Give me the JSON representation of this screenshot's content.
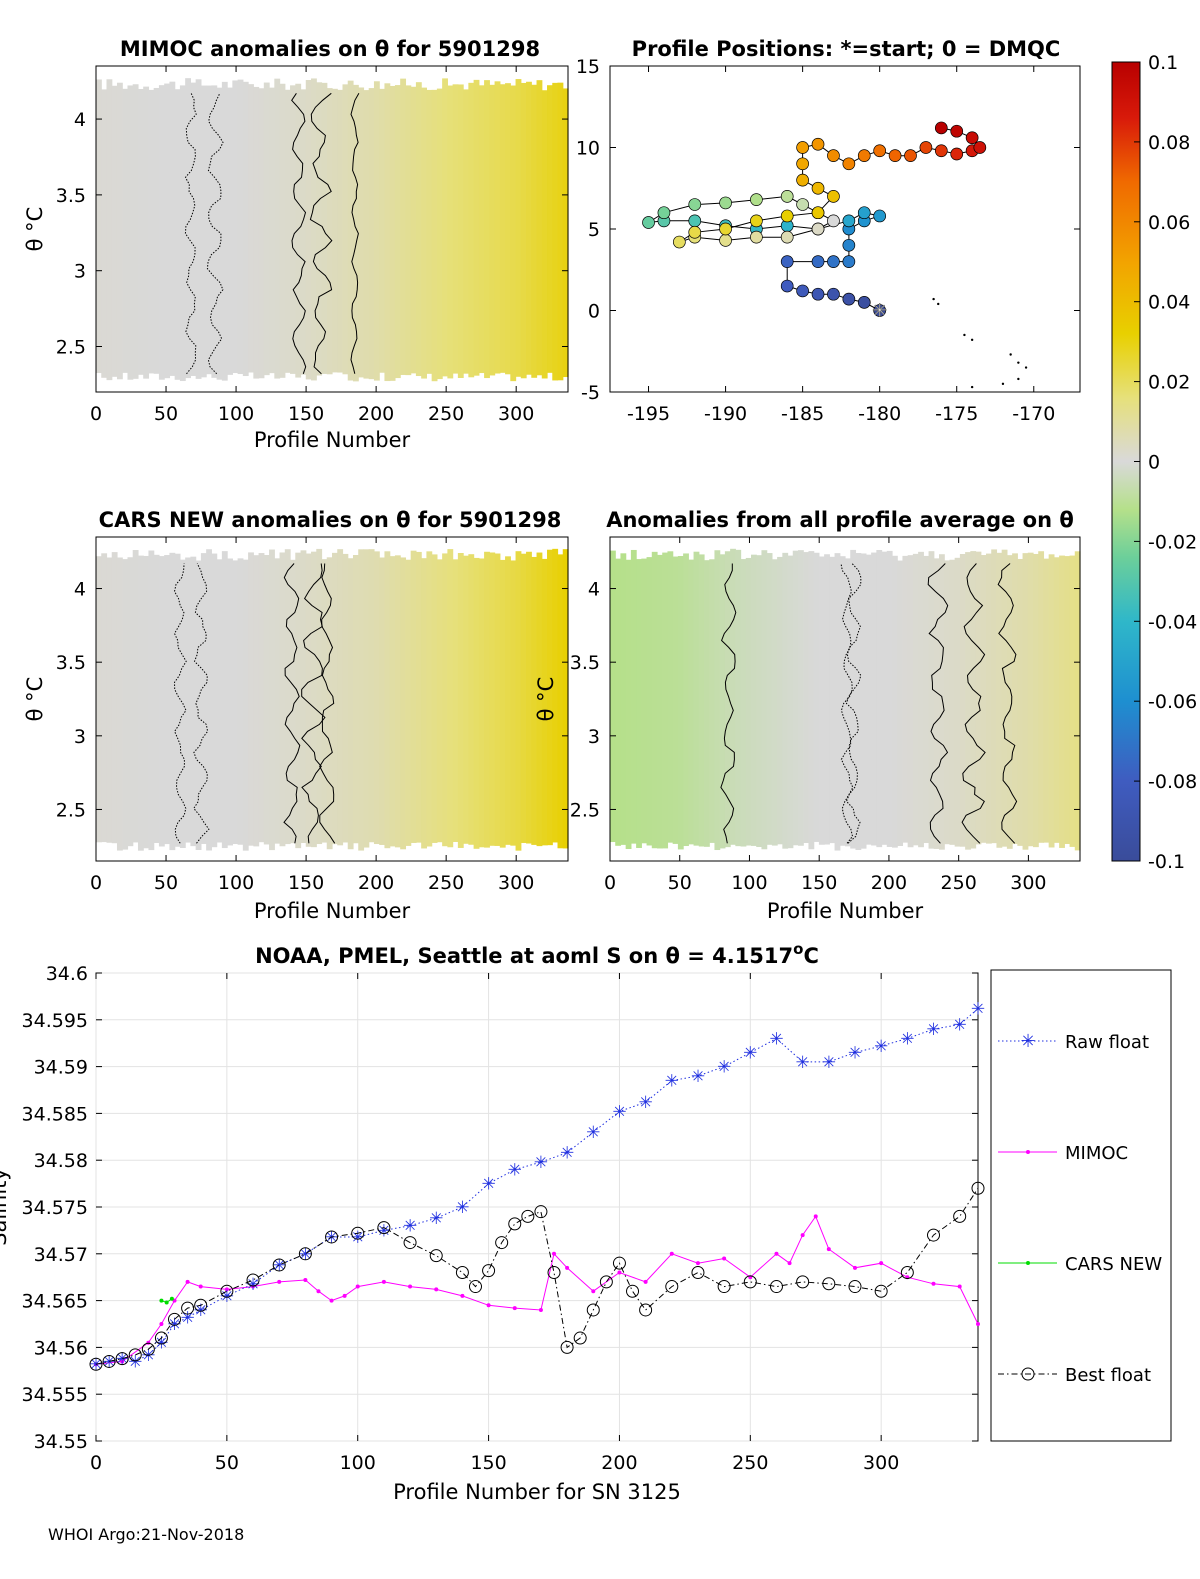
{
  "footer": "WHOI Argo:21-Nov-2018",
  "colorbar": {
    "ticks": [
      "0.1",
      "0.08",
      "0.06",
      "0.04",
      "0.02",
      "0",
      "-0.02",
      "-0.04",
      "-0.06",
      "-0.08",
      "-0.1"
    ],
    "range": [
      -0.1,
      0.1
    ],
    "colors": [
      "#3a4c9a",
      "#3f5cc0",
      "#1e8fd0",
      "#2fb7c9",
      "#6ccf9a",
      "#b5e08a",
      "#d9d9d9",
      "#e6e07a",
      "#e8d000",
      "#f2a300",
      "#f06a00",
      "#d81a0a",
      "#b80000"
    ]
  },
  "chart_data": [
    {
      "id": "mimoc",
      "type": "heatmap",
      "title": "MIMOC anomalies on θ  for 5901298",
      "xlabel": "Profile Number",
      "ylabel": "θ °C",
      "xlim": [
        0,
        337
      ],
      "ylim": [
        2.2,
        4.35
      ],
      "xticks": [
        "0",
        "50",
        "100",
        "150",
        "200",
        "250",
        "300"
      ],
      "yticks": [
        "2.5",
        "3",
        "3.5",
        "4"
      ],
      "anomaly_profile": [
        [
          0,
          0.001
        ],
        [
          50,
          0.0
        ],
        [
          100,
          0.0
        ],
        [
          150,
          0.003
        ],
        [
          200,
          0.008
        ],
        [
          250,
          0.016
        ],
        [
          300,
          0.022
        ],
        [
          337,
          0.03
        ]
      ]
    },
    {
      "id": "positions",
      "type": "scatter",
      "title": "Profile Positions: *=start; 0 = DMQC",
      "xlabel": "",
      "ylabel": "",
      "xlim": [
        -197.5,
        -167
      ],
      "ylim": [
        -5,
        15
      ],
      "xticks": [
        "-195",
        "-190",
        "-185",
        "-180",
        "-175",
        "-170"
      ],
      "yticks": [
        "-5",
        "0",
        "5",
        "10",
        "15"
      ],
      "start": [
        -180,
        0
      ],
      "track": [
        [
          -180,
          0
        ],
        [
          -181,
          0.5
        ],
        [
          -182,
          0.7
        ],
        [
          -183,
          1.0
        ],
        [
          -184,
          1.0
        ],
        [
          -185,
          1.2
        ],
        [
          -186,
          1.5
        ],
        [
          -186,
          3.0
        ],
        [
          -184,
          3.0
        ],
        [
          -183,
          3.0
        ],
        [
          -182,
          3.0
        ],
        [
          -182,
          4.0
        ],
        [
          -182,
          5.0
        ],
        [
          -181,
          5.5
        ],
        [
          -180,
          5.8
        ],
        [
          -181,
          6.0
        ],
        [
          -182,
          5.5
        ],
        [
          -184,
          5.0
        ],
        [
          -186,
          5.2
        ],
        [
          -188,
          5.0
        ],
        [
          -190,
          5.2
        ],
        [
          -192,
          5.5
        ],
        [
          -194,
          5.5
        ],
        [
          -195,
          5.4
        ],
        [
          -194,
          6.0
        ],
        [
          -192,
          6.5
        ],
        [
          -190,
          6.6
        ],
        [
          -188,
          6.8
        ],
        [
          -186,
          7.0
        ],
        [
          -185,
          6.5
        ],
        [
          -184,
          6.0
        ],
        [
          -183,
          5.5
        ],
        [
          -184,
          5.0
        ],
        [
          -186,
          4.5
        ],
        [
          -188,
          4.5
        ],
        [
          -190,
          4.3
        ],
        [
          -192,
          4.5
        ],
        [
          -193,
          4.2
        ],
        [
          -192,
          4.8
        ],
        [
          -190,
          5.0
        ],
        [
          -188,
          5.5
        ],
        [
          -186,
          5.8
        ],
        [
          -184,
          6.0
        ],
        [
          -183,
          7.0
        ],
        [
          -184,
          7.5
        ],
        [
          -185,
          8.0
        ],
        [
          -185,
          9.0
        ],
        [
          -185,
          10.0
        ],
        [
          -184,
          10.2
        ],
        [
          -183,
          9.5
        ],
        [
          -182,
          9.0
        ],
        [
          -181,
          9.5
        ],
        [
          -180,
          9.8
        ],
        [
          -179,
          9.5
        ],
        [
          -178,
          9.5
        ],
        [
          -177,
          10.0
        ],
        [
          -176,
          9.8
        ],
        [
          -175,
          9.6
        ],
        [
          -174,
          9.8
        ],
        [
          -173.5,
          10.0
        ],
        [
          -174,
          10.6
        ],
        [
          -175,
          11.0
        ],
        [
          -176,
          11.2
        ]
      ],
      "dots": [
        [
          -176.5,
          0.7
        ],
        [
          -176.2,
          0.4
        ],
        [
          -174.5,
          -1.5
        ],
        [
          -174,
          -1.8
        ],
        [
          -171.5,
          -2.7
        ],
        [
          -171,
          -3.2
        ],
        [
          -170.5,
          -3.5
        ],
        [
          -172,
          -4.5
        ],
        [
          -174,
          -4.7
        ],
        [
          -171,
          -4.2
        ]
      ]
    },
    {
      "id": "cars",
      "type": "heatmap",
      "title": "CARS NEW anomalies on θ for 5901298",
      "xlabel": "Profile Number",
      "ylabel": "θ °C",
      "xlim": [
        0,
        337
      ],
      "ylim": [
        2.15,
        4.35
      ],
      "xticks": [
        "0",
        "50",
        "100",
        "150",
        "200",
        "250",
        "300"
      ],
      "yticks": [
        "2.5",
        "3",
        "3.5",
        "4"
      ],
      "anomaly_profile": [
        [
          0,
          0.001
        ],
        [
          50,
          0.0
        ],
        [
          100,
          0.0
        ],
        [
          150,
          0.003
        ],
        [
          200,
          0.007
        ],
        [
          250,
          0.015
        ],
        [
          300,
          0.023
        ],
        [
          337,
          0.032
        ]
      ]
    },
    {
      "id": "allavg",
      "type": "heatmap",
      "title": "Anomalies from all profile average on θ",
      "xlabel": "Profile Number",
      "ylabel": "θ °C",
      "xlim": [
        0,
        337
      ],
      "ylim": [
        2.15,
        4.35
      ],
      "xticks": [
        "0",
        "50",
        "100",
        "150",
        "200",
        "250",
        "300"
      ],
      "yticks": [
        "2.5",
        "3",
        "3.5",
        "4"
      ],
      "anomaly_profile": [
        [
          0,
          -0.012
        ],
        [
          50,
          -0.01
        ],
        [
          90,
          -0.005
        ],
        [
          150,
          0.0
        ],
        [
          200,
          0.0
        ],
        [
          250,
          0.003
        ],
        [
          300,
          0.008
        ],
        [
          337,
          0.014
        ]
      ]
    },
    {
      "id": "salinity",
      "type": "line",
      "title_prefix": "NOAA, PMEL, Seattle at aoml S on θ = 4.1517",
      "title_deg": "o",
      "title_unit": "C",
      "xlabel": "Profile Number for SN 3125",
      "ylabel": "Salinity",
      "xlim": [
        0,
        337
      ],
      "ylim": [
        34.55,
        34.6
      ],
      "xticks": [
        "0",
        "50",
        "100",
        "150",
        "200",
        "250",
        "300"
      ],
      "yticks": [
        "34.6",
        "34.595",
        "34.59",
        "34.585",
        "34.58",
        "34.575",
        "34.57",
        "34.565",
        "34.56",
        "34.555",
        "34.55"
      ],
      "legend": [
        "Raw float",
        "MIMOC",
        "CARS NEW",
        "Best float"
      ],
      "series": [
        {
          "name": "Raw float",
          "color": "#1f2fe0",
          "style": "dotted",
          "marker": "star",
          "points": [
            [
              0,
              34.5582
            ],
            [
              5,
              34.5585
            ],
            [
              10,
              34.5588
            ],
            [
              15,
              34.5585
            ],
            [
              20,
              34.5592
            ],
            [
              25,
              34.5605
            ],
            [
              30,
              34.5625
            ],
            [
              35,
              34.5632
            ],
            [
              40,
              34.564
            ],
            [
              50,
              34.5655
            ],
            [
              60,
              34.5668
            ],
            [
              70,
              34.5688
            ],
            [
              80,
              34.57
            ],
            [
              90,
              34.5718
            ],
            [
              100,
              34.5718
            ],
            [
              110,
              34.5725
            ],
            [
              120,
              34.573
            ],
            [
              130,
              34.5738
            ],
            [
              140,
              34.575
            ],
            [
              150,
              34.5775
            ],
            [
              160,
              34.579
            ],
            [
              170,
              34.5798
            ],
            [
              180,
              34.5808
            ],
            [
              190,
              34.583
            ],
            [
              200,
              34.5852
            ],
            [
              210,
              34.5862
            ],
            [
              220,
              34.5885
            ],
            [
              230,
              34.589
            ],
            [
              240,
              34.59
            ],
            [
              250,
              34.5915
            ],
            [
              260,
              34.593
            ],
            [
              270,
              34.5905
            ],
            [
              280,
              34.5905
            ],
            [
              290,
              34.5915
            ],
            [
              300,
              34.5922
            ],
            [
              310,
              34.593
            ],
            [
              320,
              34.594
            ],
            [
              330,
              34.5945
            ],
            [
              337,
              34.5962
            ]
          ]
        },
        {
          "name": "MIMOC",
          "color": "#ff00ff",
          "style": "solid",
          "marker": "dot",
          "points": [
            [
              0,
              34.5582
            ],
            [
              10,
              34.5585
            ],
            [
              20,
              34.5605
            ],
            [
              25,
              34.5625
            ],
            [
              30,
              34.565
            ],
            [
              35,
              34.567
            ],
            [
              40,
              34.5665
            ],
            [
              50,
              34.5662
            ],
            [
              60,
              34.5665
            ],
            [
              70,
              34.567
            ],
            [
              80,
              34.5672
            ],
            [
              85,
              34.566
            ],
            [
              90,
              34.565
            ],
            [
              95,
              34.5655
            ],
            [
              100,
              34.5665
            ],
            [
              110,
              34.567
            ],
            [
              120,
              34.5665
            ],
            [
              130,
              34.5662
            ],
            [
              140,
              34.5655
            ],
            [
              150,
              34.5645
            ],
            [
              160,
              34.5642
            ],
            [
              170,
              34.564
            ],
            [
              175,
              34.57
            ],
            [
              180,
              34.5685
            ],
            [
              190,
              34.566
            ],
            [
              200,
              34.568
            ],
            [
              210,
              34.567
            ],
            [
              220,
              34.57
            ],
            [
              230,
              34.569
            ],
            [
              240,
              34.5695
            ],
            [
              250,
              34.5675
            ],
            [
              260,
              34.57
            ],
            [
              265,
              34.569
            ],
            [
              270,
              34.572
            ],
            [
              275,
              34.574
            ],
            [
              280,
              34.5705
            ],
            [
              290,
              34.5685
            ],
            [
              300,
              34.569
            ],
            [
              310,
              34.5675
            ],
            [
              320,
              34.5668
            ],
            [
              330,
              34.5665
            ],
            [
              337,
              34.5625
            ]
          ]
        },
        {
          "name": "CARS NEW",
          "color": "#00dd00",
          "style": "solid",
          "marker": "dot",
          "points": [
            [
              25,
              34.565
            ],
            [
              27,
              34.5648
            ],
            [
              29,
              34.5652
            ]
          ]
        },
        {
          "name": "Best float",
          "color": "#000000",
          "style": "dashdot",
          "marker": "circle",
          "points": [
            [
              0,
              34.5582
            ],
            [
              5,
              34.5585
            ],
            [
              10,
              34.5588
            ],
            [
              15,
              34.5592
            ],
            [
              20,
              34.5598
            ],
            [
              25,
              34.561
            ],
            [
              30,
              34.563
            ],
            [
              35,
              34.5642
            ],
            [
              40,
              34.5645
            ],
            [
              50,
              34.566
            ],
            [
              60,
              34.5672
            ],
            [
              70,
              34.5688
            ],
            [
              80,
              34.57
            ],
            [
              90,
              34.5718
            ],
            [
              100,
              34.5722
            ],
            [
              110,
              34.5728
            ],
            [
              120,
              34.5712
            ],
            [
              130,
              34.5698
            ],
            [
              140,
              34.568
            ],
            [
              145,
              34.5665
            ],
            [
              150,
              34.5682
            ],
            [
              155,
              34.5712
            ],
            [
              160,
              34.5732
            ],
            [
              165,
              34.574
            ],
            [
              170,
              34.5745
            ],
            [
              175,
              34.568
            ],
            [
              180,
              34.56
            ],
            [
              185,
              34.561
            ],
            [
              190,
              34.564
            ],
            [
              195,
              34.567
            ],
            [
              200,
              34.569
            ],
            [
              205,
              34.566
            ],
            [
              210,
              34.564
            ],
            [
              220,
              34.5665
            ],
            [
              230,
              34.568
            ],
            [
              240,
              34.5665
            ],
            [
              250,
              34.567
            ],
            [
              260,
              34.5665
            ],
            [
              270,
              34.567
            ],
            [
              280,
              34.5668
            ],
            [
              290,
              34.5665
            ],
            [
              300,
              34.566
            ],
            [
              310,
              34.568
            ],
            [
              320,
              34.572
            ],
            [
              330,
              34.574
            ],
            [
              337,
              34.577
            ]
          ]
        }
      ]
    }
  ]
}
